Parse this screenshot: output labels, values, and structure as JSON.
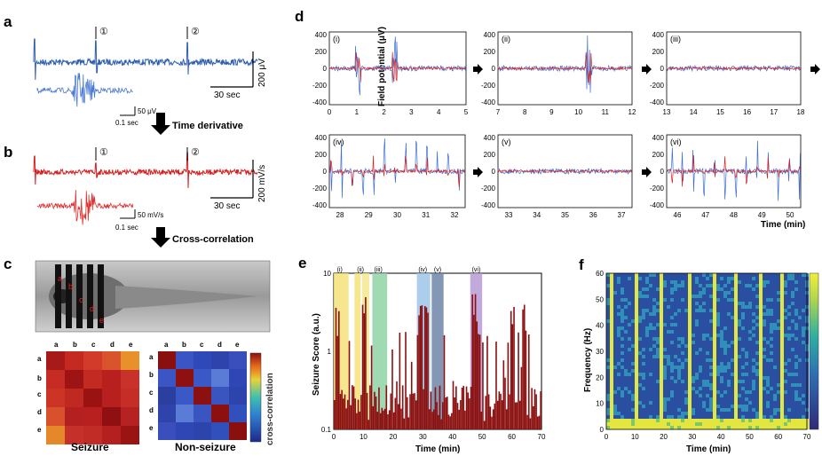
{
  "panel_letters": {
    "a": "a",
    "b": "b",
    "c": "c",
    "d": "d",
    "e": "e",
    "f": "f"
  },
  "colors": {
    "blue": "#2f5fb3",
    "red": "#d62020",
    "dark_red": "#8b1010",
    "yellow_bar": "#f4e27a",
    "green_bar": "#8fd3a6",
    "lightblue_bar": "#9ec4e8",
    "steel_bar": "#6f85a8",
    "purple_bar": "#b79ad6"
  },
  "panel_a": {
    "markers": [
      "①",
      "②"
    ],
    "scale_top": "200 μV",
    "time_bar": "30 sec",
    "inset_scale_v": "50 μV",
    "inset_scale_t": "0.1 sec"
  },
  "arrow1_label": "Time derivative",
  "panel_b": {
    "markers": [
      "①",
      "②"
    ],
    "scale_top": "200 mV/s",
    "time_bar": "30 sec",
    "inset_scale_v": "50 mV/s",
    "inset_scale_t": "0.1 sec"
  },
  "arrow2_label": "Cross-correlation",
  "panel_c": {
    "electrode_labels": [
      "a",
      "b",
      "c",
      "d",
      "e"
    ],
    "matrix_labels": [
      "a",
      "b",
      "c",
      "d",
      "e"
    ],
    "seizure_title": "Seizure",
    "nonseizure_title": "Non-seizure",
    "colorbar_label": "cross-correlation"
  },
  "panel_d": {
    "ylabel": "Field potential (μV)",
    "xlabel": "Time (min)",
    "subpanels": [
      {
        "tag": "(i)",
        "ticks": [
          "0",
          "1",
          "2",
          "3",
          "4",
          "5"
        ]
      },
      {
        "tag": "(ii)",
        "ticks": [
          "7",
          "8",
          "9",
          "10",
          "11",
          "12"
        ]
      },
      {
        "tag": "(iii)",
        "ticks": [
          "13",
          "14",
          "15",
          "16",
          "17",
          "18"
        ]
      },
      {
        "tag": "(iv)",
        "ticks": [
          "28",
          "29",
          "30",
          "31",
          "32"
        ]
      },
      {
        "tag": "(v)",
        "ticks": [
          "33",
          "34",
          "35",
          "36",
          "37"
        ]
      },
      {
        "tag": "(vi)",
        "ticks": [
          "46",
          "47",
          "48",
          "49",
          "50"
        ]
      }
    ],
    "yticks": [
      "400",
      "200",
      "0",
      "-200",
      "-400"
    ]
  },
  "panel_e": {
    "ylabel": "Seizure Score (a.u.)",
    "xlabel": "Time (min)",
    "yticks": [
      "10",
      "1",
      "0.1"
    ],
    "xticks": [
      "0",
      "10",
      "20",
      "30",
      "40",
      "50",
      "60",
      "70"
    ],
    "band_tags": [
      "(i)",
      "(ii)",
      "(iii)",
      "(iv)",
      "(v)",
      "(vi)"
    ]
  },
  "panel_f": {
    "ylabel": "Frequency (Hz)",
    "xlabel": "Time (min)",
    "yticks": [
      "60",
      "50",
      "40",
      "30",
      "20",
      "10",
      "0"
    ],
    "xticks": [
      "0",
      "10",
      "20",
      "30",
      "40",
      "50",
      "60",
      "70"
    ]
  }
}
